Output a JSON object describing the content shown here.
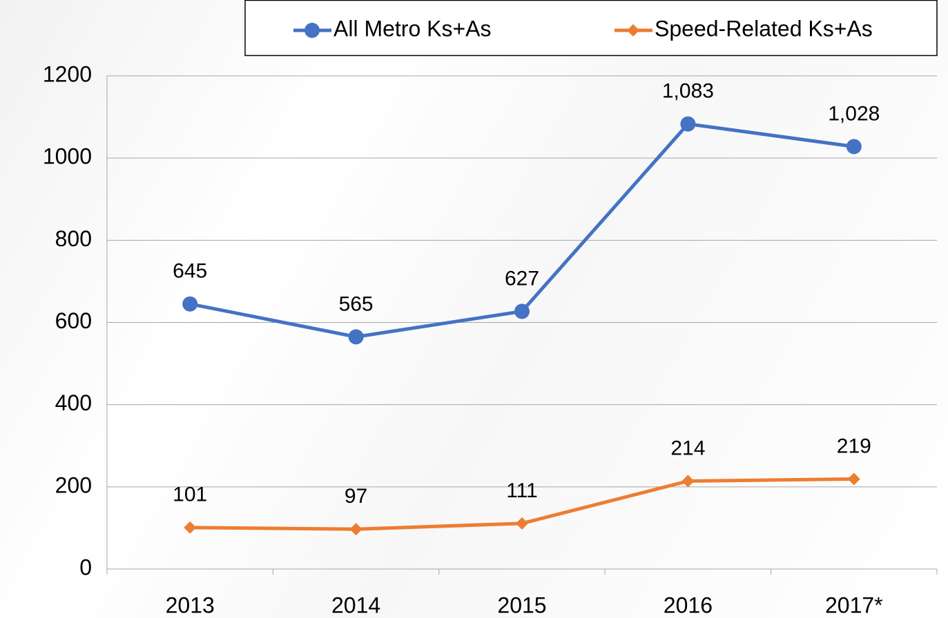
{
  "chart_data": {
    "type": "line",
    "categories": [
      "2013",
      "2014",
      "2015",
      "2016",
      "2017*"
    ],
    "series": [
      {
        "name": "All Metro Ks+As",
        "color": "#4472c4",
        "marker": "circle",
        "values": [
          645,
          565,
          627,
          1083,
          1028
        ],
        "value_labels": [
          "645",
          "565",
          "627",
          "1,083",
          "1,028"
        ]
      },
      {
        "name": "Speed-Related Ks+As",
        "color": "#ed7d31",
        "marker": "diamond",
        "values": [
          101,
          97,
          111,
          214,
          219
        ]
      }
    ],
    "ylim": [
      0,
      1200
    ],
    "yticks": [
      0,
      200,
      400,
      600,
      800,
      1000,
      1200
    ],
    "grid": true,
    "legend": "top-right"
  }
}
